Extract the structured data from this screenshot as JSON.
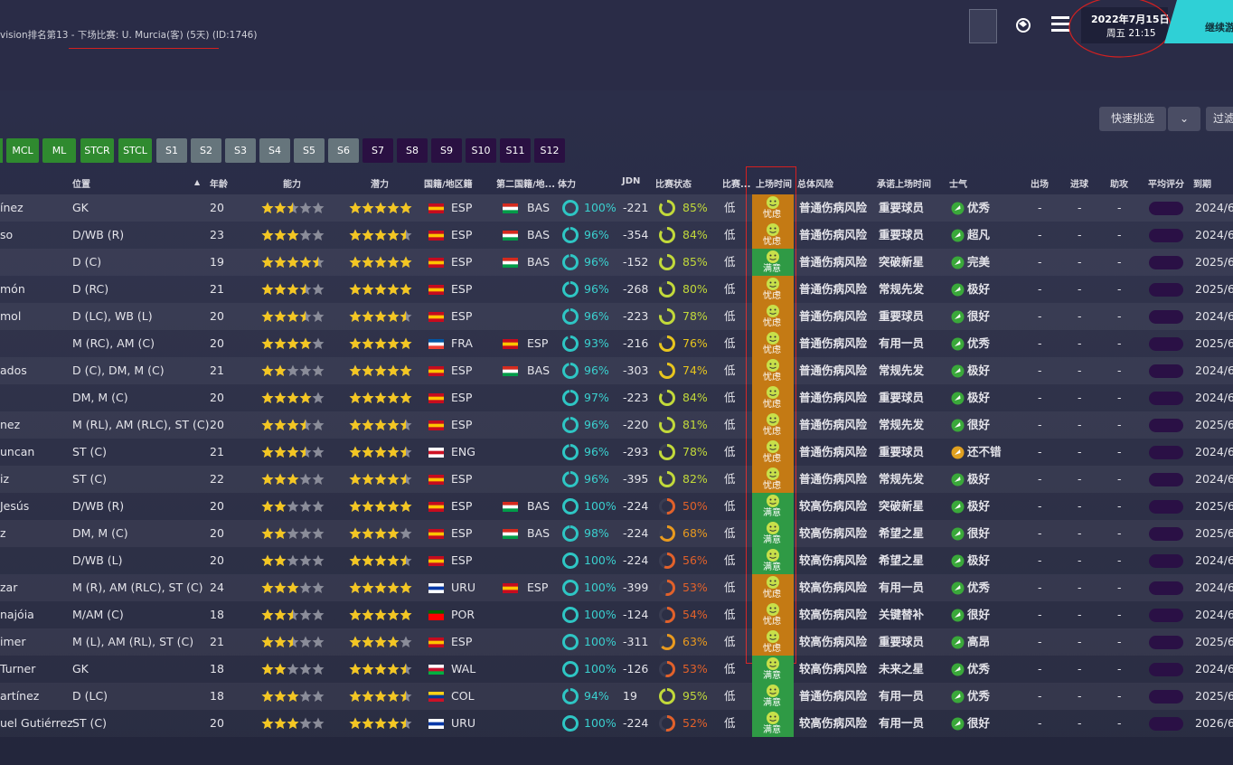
{
  "header": {
    "breadcrumb": "vision排名第13 - 下场比赛: U. Murcia(客) (5天) (ID:1746)",
    "date": "2022年7月15日",
    "weekday_time": "周五 21:15",
    "continue": "继续游"
  },
  "toolbar": {
    "quick_pick": "快速挑选",
    "filter": "过滤"
  },
  "tabs": [
    {
      "label": "MCL",
      "color": "#2f8a2f"
    },
    {
      "label": "ML",
      "color": "#2f8a2f"
    },
    {
      "label": "STCR",
      "color": "#2f8a2f"
    },
    {
      "label": "STCL",
      "color": "#2f8a2f"
    },
    {
      "label": "S1",
      "color": "#66757c"
    },
    {
      "label": "S2",
      "color": "#66757c"
    },
    {
      "label": "S3",
      "color": "#66757c"
    },
    {
      "label": "S4",
      "color": "#66757c"
    },
    {
      "label": "S5",
      "color": "#66757c"
    },
    {
      "label": "S6",
      "color": "#66757c"
    },
    {
      "label": "S7",
      "color": "#2a1042"
    },
    {
      "label": "S8",
      "color": "#2a1042"
    },
    {
      "label": "S9",
      "color": "#2a1042"
    },
    {
      "label": "S10",
      "color": "#2a1042"
    },
    {
      "label": "S11",
      "color": "#2a1042"
    },
    {
      "label": "S12",
      "color": "#2a1042"
    }
  ],
  "flag_colors": {
    "ESP": [
      "#c60b1e",
      "#ffc400",
      "#c60b1e"
    ],
    "BAS": [
      "#d52b1e",
      "#ffffff",
      "#009b48"
    ],
    "FRA": [
      "#0055a4",
      "#ffffff",
      "#ef4135"
    ],
    "ENG": [
      "#ffffff",
      "#ce1124",
      "#ffffff"
    ],
    "URU": [
      "#ffffff",
      "#0038a8",
      "#ffffff"
    ],
    "POR": [
      "#006600",
      "#ff0000",
      "#ff0000"
    ],
    "WAL": [
      "#ffffff",
      "#c8102e",
      "#00b140"
    ],
    "COL": [
      "#fcd116",
      "#003893",
      "#ce1126"
    ]
  },
  "table": {
    "columns": {
      "position": "位置",
      "age": "年龄",
      "ability": "能力",
      "potential": "潜力",
      "nationality": "国籍/地区籍",
      "second_nationality": "第二国籍/地...",
      "condition": "体力",
      "jdn": "JDN",
      "sharpness": "比赛状态",
      "load": "比赛...",
      "playing_time": "上场时间",
      "injury_risk": "总体风险",
      "promised_time": "承诺上场时间",
      "morale": "士气",
      "apps": "出场",
      "goals": "进球",
      "assists": "助攻",
      "rating": "平均评分",
      "expires": "到期"
    },
    "rows": [
      {
        "name": "ínez",
        "position": "GK",
        "age": "20",
        "ability": 2.5,
        "potential": 5,
        "nationality": "ESP",
        "second_nationality": "BAS",
        "condition": "100%",
        "jdn": "-221",
        "sharpness": "85%",
        "load": "低",
        "playing_time": "忧虑",
        "playing_color": "#c47a14",
        "injury_risk": "普通伤病风险",
        "promised_time": "重要球员",
        "morale": "优秀",
        "morale_color": "#3aa83a",
        "apps": "-",
        "goals": "-",
        "assists": "-",
        "expires": "2024/6"
      },
      {
        "name": "so",
        "position": "D/WB (R)",
        "age": "23",
        "ability": 3,
        "potential": 4.5,
        "nationality": "ESP",
        "second_nationality": "BAS",
        "condition": "96%",
        "jdn": "-354",
        "sharpness": "84%",
        "load": "低",
        "playing_time": "忧虑",
        "playing_color": "#c47a14",
        "injury_risk": "普通伤病风险",
        "promised_time": "重要球员",
        "morale": "超凡",
        "morale_color": "#3aa83a",
        "apps": "-",
        "goals": "-",
        "assists": "-",
        "expires": "2024/6"
      },
      {
        "position": "D (C)",
        "age": "19",
        "ability": 4.5,
        "potential": 5,
        "nationality": "ESP",
        "second_nationality": "BAS",
        "condition": "96%",
        "jdn": "-152",
        "sharpness": "85%",
        "load": "低",
        "playing_time": "满意",
        "playing_color": "#2f9a45",
        "injury_risk": "普通伤病风险",
        "promised_time": "突破新星",
        "morale": "完美",
        "morale_color": "#3aa83a",
        "apps": "-",
        "goals": "-",
        "assists": "-",
        "expires": "2025/6"
      },
      {
        "name": "món",
        "position": "D (RC)",
        "age": "21",
        "ability": 3.5,
        "potential": 5,
        "nationality": "ESP",
        "condition": "96%",
        "jdn": "-268",
        "sharpness": "80%",
        "load": "低",
        "playing_time": "忧虑",
        "playing_color": "#c47a14",
        "injury_risk": "普通伤病风险",
        "promised_time": "常规先发",
        "morale": "极好",
        "morale_color": "#3aa83a",
        "apps": "-",
        "goals": "-",
        "assists": "-",
        "expires": "2025/6"
      },
      {
        "name": "mol",
        "position": "D (LC), WB (L)",
        "age": "20",
        "ability": 3.5,
        "potential": 4.5,
        "nationality": "ESP",
        "condition": "96%",
        "jdn": "-223",
        "sharpness": "78%",
        "load": "低",
        "playing_time": "忧虑",
        "playing_color": "#c47a14",
        "injury_risk": "普通伤病风险",
        "promised_time": "重要球员",
        "morale": "很好",
        "morale_color": "#3aa83a",
        "apps": "-",
        "goals": "-",
        "assists": "-",
        "expires": "2024/6"
      },
      {
        "position": "M (RC), AM (C)",
        "age": "20",
        "ability": 4,
        "potential": 5,
        "nationality": "FRA",
        "second_nationality": "ESP",
        "condition": "93%",
        "jdn": "-216",
        "sharpness": "76%",
        "load": "低",
        "playing_time": "忧虑",
        "playing_color": "#c47a14",
        "injury_risk": "普通伤病风险",
        "promised_time": "有用一员",
        "morale": "优秀",
        "morale_color": "#3aa83a",
        "apps": "-",
        "goals": "-",
        "assists": "-",
        "expires": "2025/6"
      },
      {
        "name": "ados",
        "position": "D (C), DM, M (C)",
        "age": "21",
        "ability": 2,
        "potential": 5,
        "nationality": "ESP",
        "second_nationality": "BAS",
        "condition": "96%",
        "jdn": "-303",
        "sharpness": "74%",
        "load": "低",
        "playing_time": "忧虑",
        "playing_color": "#c47a14",
        "injury_risk": "普通伤病风险",
        "promised_time": "常规先发",
        "morale": "极好",
        "morale_color": "#3aa83a",
        "apps": "-",
        "goals": "-",
        "assists": "-",
        "expires": "2024/6"
      },
      {
        "position": "DM, M (C)",
        "age": "20",
        "ability": 4,
        "potential": 5,
        "nationality": "ESP",
        "condition": "97%",
        "jdn": "-223",
        "sharpness": "84%",
        "load": "低",
        "playing_time": "忧虑",
        "playing_color": "#c47a14",
        "injury_risk": "普通伤病风险",
        "promised_time": "重要球员",
        "morale": "极好",
        "morale_color": "#3aa83a",
        "apps": "-",
        "goals": "-",
        "assists": "-",
        "expires": "2024/6"
      },
      {
        "name": "nez",
        "position": "M (RL), AM (RLC), ST (C)",
        "age": "20",
        "ability": 3.5,
        "potential": 4.5,
        "nationality": "ESP",
        "condition": "96%",
        "jdn": "-220",
        "sharpness": "81%",
        "load": "低",
        "playing_time": "忧虑",
        "playing_color": "#c47a14",
        "injury_risk": "普通伤病风险",
        "promised_time": "常规先发",
        "morale": "很好",
        "morale_color": "#3aa83a",
        "apps": "-",
        "goals": "-",
        "assists": "-",
        "expires": "2025/6"
      },
      {
        "name": "uncan",
        "position": "ST (C)",
        "age": "21",
        "ability": 3.5,
        "potential": 4.5,
        "nationality": "ENG",
        "condition": "96%",
        "jdn": "-293",
        "sharpness": "78%",
        "load": "低",
        "playing_time": "忧虑",
        "playing_color": "#c47a14",
        "injury_risk": "普通伤病风险",
        "promised_time": "重要球员",
        "morale": "还不错",
        "morale_color": "#e0a020",
        "apps": "-",
        "goals": "-",
        "assists": "-",
        "expires": "2024/6"
      },
      {
        "name": "iz",
        "position": "ST (C)",
        "age": "22",
        "ability": 3,
        "potential": 4.5,
        "nationality": "ESP",
        "condition": "96%",
        "jdn": "-395",
        "sharpness": "82%",
        "load": "低",
        "playing_time": "忧虑",
        "playing_color": "#c47a14",
        "injury_risk": "普通伤病风险",
        "promised_time": "常规先发",
        "morale": "极好",
        "morale_color": "#3aa83a",
        "apps": "-",
        "goals": "-",
        "assists": "-",
        "expires": "2024/6"
      },
      {
        "name": " Jesús",
        "position": "D/WB (R)",
        "age": "20",
        "ability": 2,
        "potential": 5,
        "nationality": "ESP",
        "second_nationality": "BAS",
        "condition": "100%",
        "jdn": "-224",
        "sharpness": "50%",
        "load": "低",
        "playing_time": "满意",
        "playing_color": "#2f9a45",
        "injury_risk": "较高伤病风险",
        "promised_time": "突破新星",
        "morale": "极好",
        "morale_color": "#3aa83a",
        "apps": "-",
        "goals": "-",
        "assists": "-",
        "expires": "2025/6"
      },
      {
        "name": "z",
        "position": "DM, M (C)",
        "age": "20",
        "ability": 2,
        "potential": 4,
        "nationality": "ESP",
        "second_nationality": "BAS",
        "condition": "98%",
        "jdn": "-224",
        "sharpness": "68%",
        "load": "低",
        "playing_time": "满意",
        "playing_color": "#2f9a45",
        "injury_risk": "较高伤病风险",
        "promised_time": "希望之星",
        "morale": "很好",
        "morale_color": "#3aa83a",
        "apps": "-",
        "goals": "-",
        "assists": "-",
        "expires": "2025/6"
      },
      {
        "position": "D/WB (L)",
        "age": "20",
        "ability": 2,
        "potential": 4.5,
        "nationality": "ESP",
        "condition": "100%",
        "jdn": "-224",
        "sharpness": "56%",
        "load": "低",
        "playing_time": "满意",
        "playing_color": "#2f9a45",
        "injury_risk": "较高伤病风险",
        "promised_time": "希望之星",
        "morale": "极好",
        "morale_color": "#3aa83a",
        "apps": "-",
        "goals": "-",
        "assists": "-",
        "expires": "2024/6"
      },
      {
        "name": "zar",
        "position": "M (R), AM (RLC), ST (C)",
        "age": "24",
        "ability": 3,
        "potential": 5,
        "nationality": "URU",
        "second_nationality": "ESP",
        "condition": "100%",
        "jdn": "-399",
        "sharpness": "53%",
        "load": "低",
        "playing_time": "忧虑",
        "playing_color": "#c47a14",
        "injury_risk": "较高伤病风险",
        "promised_time": "有用一员",
        "morale": "优秀",
        "morale_color": "#3aa83a",
        "apps": "-",
        "goals": "-",
        "assists": "-",
        "expires": "2024/6"
      },
      {
        "name": "najóia",
        "position": "M/AM (C)",
        "age": "18",
        "ability": 2.5,
        "potential": 5,
        "nationality": "POR",
        "condition": "100%",
        "jdn": "-124",
        "sharpness": "54%",
        "load": "低",
        "playing_time": "忧虑",
        "playing_color": "#c47a14",
        "injury_risk": "较高伤病风险",
        "promised_time": "关键替补",
        "morale": "很好",
        "morale_color": "#3aa83a",
        "apps": "-",
        "goals": "-",
        "assists": "-",
        "expires": "2024/6"
      },
      {
        "name": "imer",
        "position": "M (L), AM (RL), ST (C)",
        "age": "21",
        "ability": 2.5,
        "potential": 4,
        "nationality": "ESP",
        "condition": "100%",
        "jdn": "-311",
        "sharpness": "63%",
        "load": "低",
        "playing_time": "忧虑",
        "playing_color": "#c47a14",
        "injury_risk": "较高伤病风险",
        "promised_time": "重要球员",
        "morale": "高昂",
        "morale_color": "#3aa83a",
        "apps": "-",
        "goals": "-",
        "assists": "-",
        "expires": "2025/6"
      },
      {
        "name": "Turner",
        "position": "GK",
        "age": "18",
        "ability": 2,
        "potential": 4.5,
        "nationality": "WAL",
        "condition": "100%",
        "jdn": "-126",
        "sharpness": "53%",
        "load": "低",
        "playing_time": "满意",
        "playing_color": "#2f9a45",
        "injury_risk": "较高伤病风险",
        "promised_time": "未来之星",
        "morale": "优秀",
        "morale_color": "#3aa83a",
        "apps": "-",
        "goals": "-",
        "assists": "-",
        "expires": "2024/6"
      },
      {
        "name": "artínez",
        "position": "D (LC)",
        "age": "18",
        "ability": 3,
        "potential": 4.5,
        "nationality": "COL",
        "condition": "94%",
        "jdn": "19",
        "sharpness": "95%",
        "load": "低",
        "playing_time": "满意",
        "playing_color": "#2f9a45",
        "injury_risk": "普通伤病风险",
        "promised_time": "有用一员",
        "morale": "优秀",
        "morale_color": "#3aa83a",
        "apps": "-",
        "goals": "-",
        "assists": "-",
        "expires": "2025/6"
      },
      {
        "name": "uel Gutiérrez",
        "position": "ST (C)",
        "age": "20",
        "ability": 3,
        "potential": 4.5,
        "nationality": "URU",
        "condition": "100%",
        "jdn": "-224",
        "sharpness": "52%",
        "load": "低",
        "playing_time": "满意",
        "playing_color": "#2f9a45",
        "injury_risk": "较高伤病风险",
        "promised_time": "有用一员",
        "morale": "很好",
        "morale_color": "#3aa83a",
        "apps": "-",
        "goals": "-",
        "assists": "-",
        "expires": "2026/6"
      }
    ]
  }
}
